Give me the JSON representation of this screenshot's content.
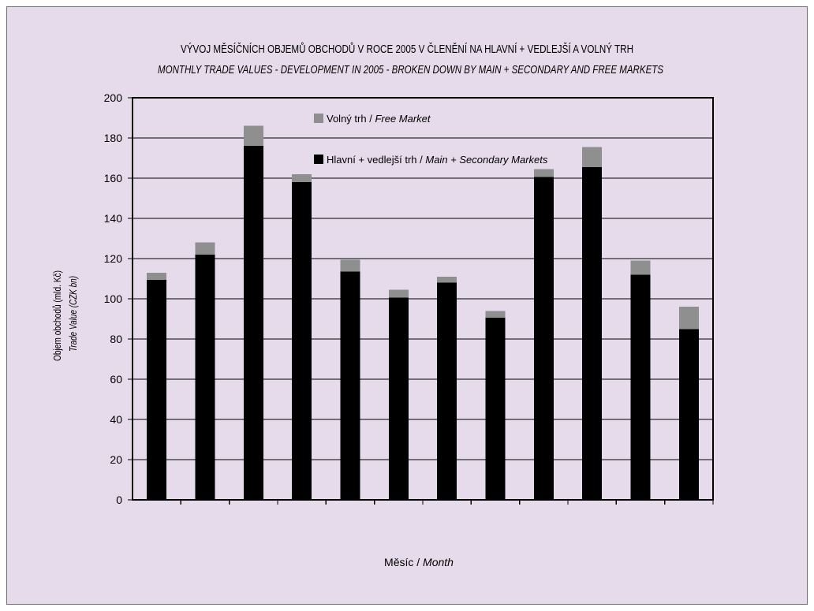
{
  "page": {
    "background": "#e5dbea"
  },
  "chart_data": {
    "type": "bar",
    "stacked": true,
    "title": "VÝVOJ MĚSÍČNÍCH OBJEMŮ OBCHODŮ V ROCE 2005 V ČLENĚNÍ NA HLAVNÍ + VEDLEJŠÍ A VOLNÝ TRH",
    "subtitle": "MONTHLY TRADE VALUES - DEVELOPMENT IN 2005 - BROKEN DOWN BY MAIN + SECONDARY AND FREE MARKETS",
    "xlabel": {
      "cz": "Měsíc",
      "en": "Month"
    },
    "ylabel": {
      "cz": "Objem obchodů (mld. Kč)",
      "en": "Trade Value (CZK bn)"
    },
    "label_separator": " / ",
    "ylim": [
      0,
      200
    ],
    "y_ticks": [
      0,
      20,
      40,
      60,
      80,
      100,
      120,
      140,
      160,
      180,
      200
    ],
    "grid_y": true,
    "legend": {
      "placement": "top-left"
    },
    "series": [
      {
        "name": {
          "cz": "Hlavní + vedlejší trh",
          "en": "Main + Secondary Markets"
        },
        "color": "#000000",
        "values": [
          109.5,
          122,
          176,
          158,
          113.5,
          100.5,
          108,
          90.5,
          160.5,
          165.5,
          112,
          85
        ]
      },
      {
        "name": {
          "cz": "Volný trh",
          "en": "Free Market"
        },
        "color": "#8f8f8f",
        "values": [
          3.5,
          6,
          10,
          4,
          6,
          4,
          3,
          3.5,
          4,
          10,
          7,
          11
        ]
      }
    ]
  }
}
